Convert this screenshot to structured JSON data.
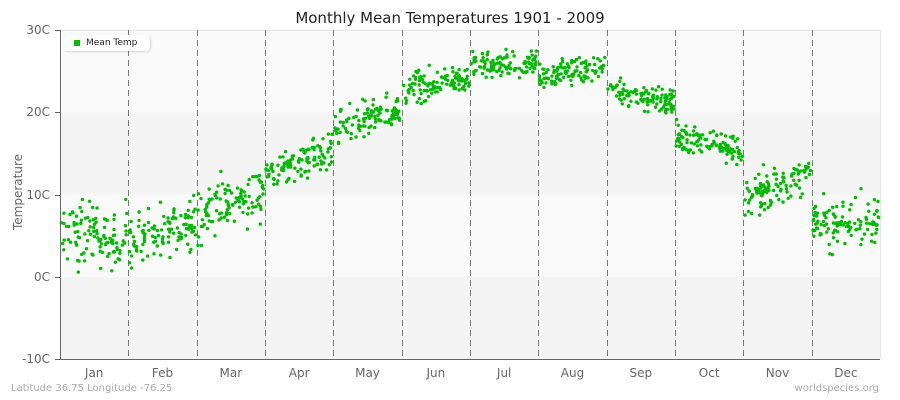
{
  "chart_data": {
    "type": "scatter",
    "title": "Monthly Mean Temperatures 1901 - 2009",
    "xlabel": "",
    "ylabel": "Temperature",
    "ylim": [
      -10,
      30
    ],
    "yticks": [
      "30C",
      "20C",
      "10C",
      "0C",
      "-10C"
    ],
    "categories": [
      "Jan",
      "Feb",
      "Mar",
      "Apr",
      "May",
      "Jun",
      "Jul",
      "Aug",
      "Sep",
      "Oct",
      "Nov",
      "Dec"
    ],
    "legend": [
      {
        "label": "Mean Temp",
        "color": "#00bb00"
      }
    ],
    "legend_position": "top-left",
    "grid": "vertical dashed month dividers, alternating horizontal bands",
    "points_per_month": 109,
    "series": [
      {
        "name": "Mean Temp",
        "month_mean": [
          5.0,
          5.5,
          9.0,
          14.0,
          19.0,
          23.5,
          25.8,
          25.0,
          22.0,
          16.2,
          11.0,
          6.5
        ],
        "month_min": [
          -1.5,
          0.2,
          3.8,
          11.0,
          15.5,
          20.0,
          23.0,
          22.5,
          19.0,
          13.5,
          7.5,
          1.5
        ],
        "month_max": [
          11.5,
          10.2,
          14.5,
          18.5,
          23.0,
          26.5,
          28.5,
          27.5,
          25.0,
          20.5,
          15.8,
          11.5
        ],
        "month_spread": [
          2.6,
          2.1,
          2.2,
          1.5,
          1.5,
          1.3,
          1.0,
          1.0,
          1.2,
          1.3,
          1.5,
          2.0
        ],
        "trend_within_month": [
          0.0,
          2.5,
          3.5,
          3.0,
          2.5,
          2.0,
          0.5,
          1.0,
          -1.5,
          -1.5,
          3.0,
          0.5
        ]
      }
    ]
  },
  "footer": {
    "location": "Latitude 36.75 Longitude -76.25",
    "source": "worldspecies.org"
  }
}
